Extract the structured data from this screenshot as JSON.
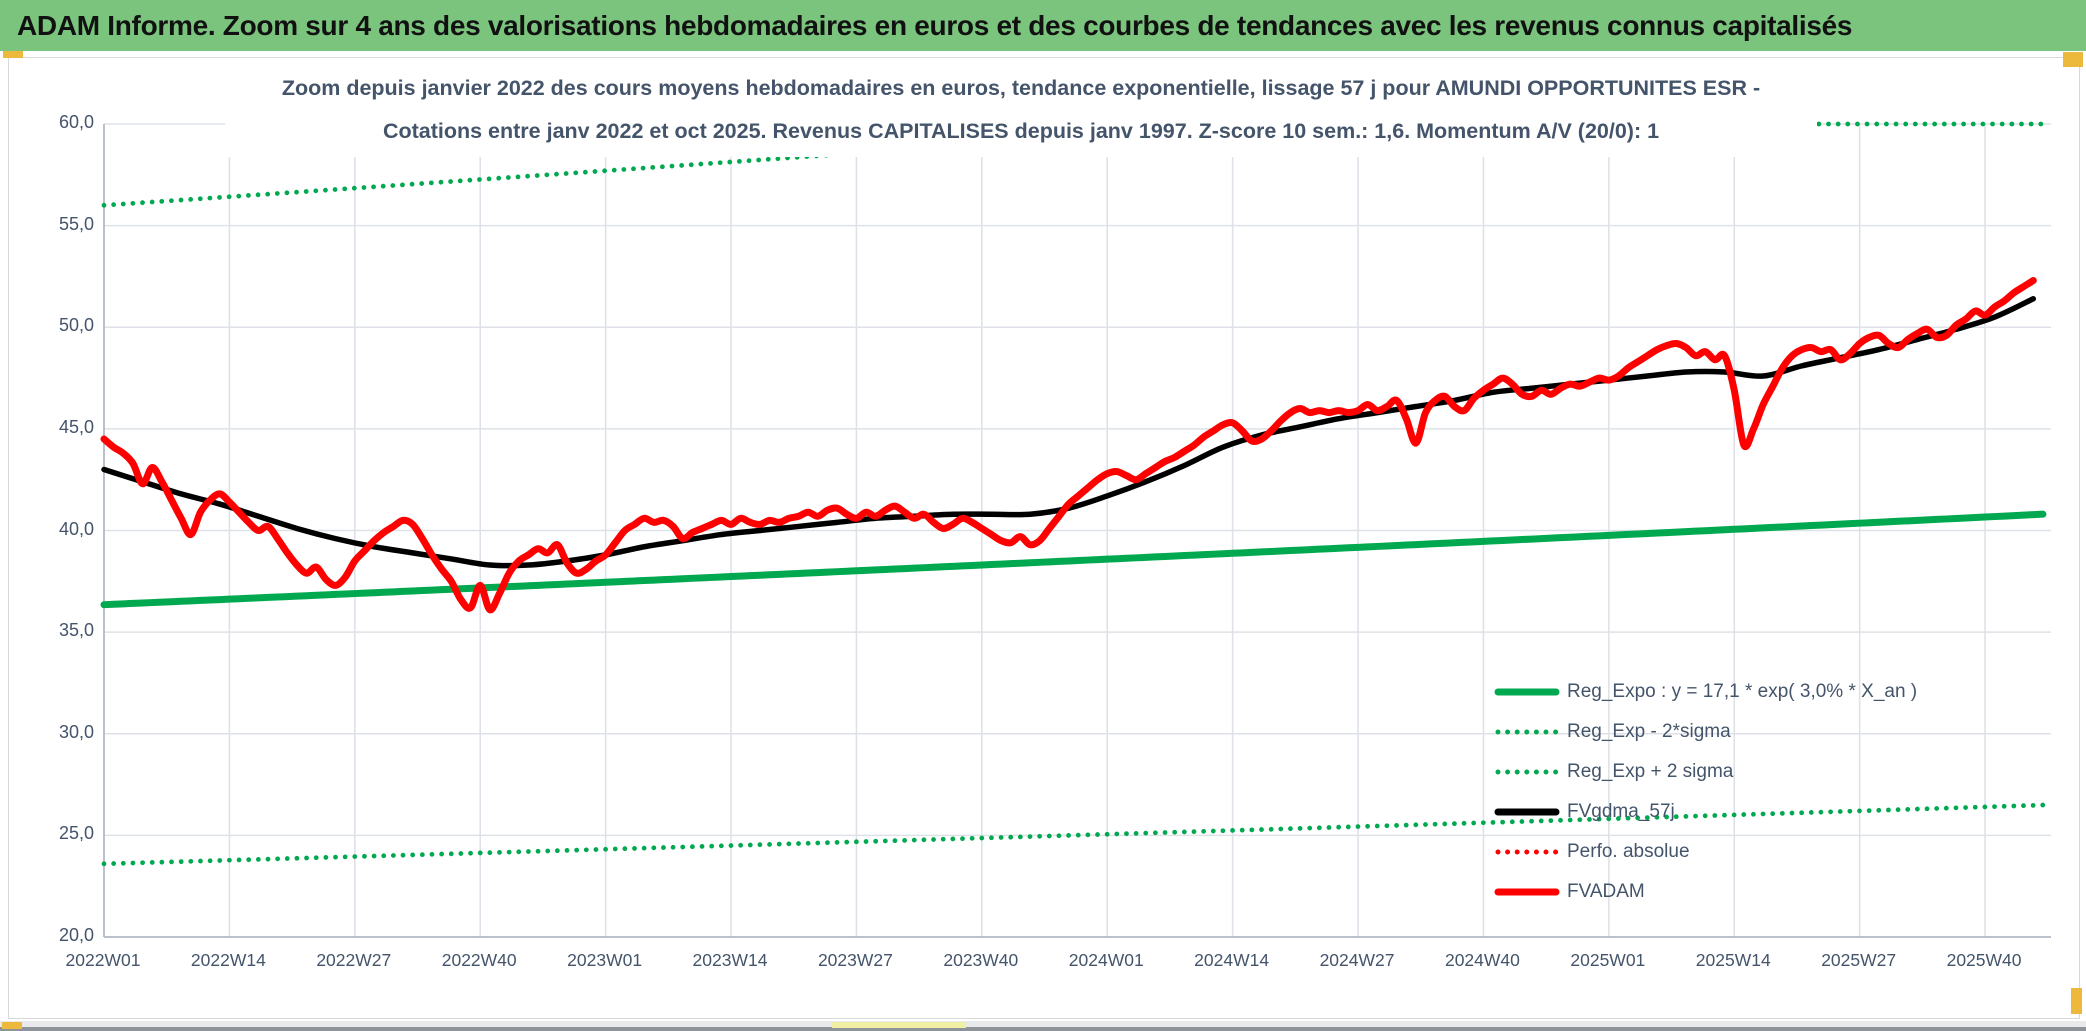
{
  "header": {
    "title": "ADAM Informe. Zoom sur 4 ans des valorisations hebdomadaires en euros et des courbes de tendances avec les revenus connus capitalisés"
  },
  "colors": {
    "header_bg": "#7ac47d",
    "text_dark": "#44546a",
    "grid": "#dee2e8",
    "axis_line": "#b3bac4",
    "green": "#00a94f",
    "red": "#ff0000",
    "black": "#000000",
    "gold_accent": "#edb93c",
    "pale_yellow_accent": "#eff0a4",
    "bottom_strip_light": "#e9eaec",
    "bottom_strip_dark": "#8e9299"
  },
  "chart_data": {
    "type": "line",
    "title_line1": "Zoom depuis janvier 2022 des cours moyens hebdomadaires en euros, tendance exponentielle, lissage 57 j pour AMUNDI OPPORTUNITES ESR -",
    "title_line2": "Cotations entre janv 2022 et oct 2025. Revenus CAPITALISES depuis janv 1997. Z-score 10 sem.: 1,6. Momentum A/V (20/0): 1",
    "x_axis": {
      "tick_labels": [
        "2022W01",
        "2022W14",
        "2022W27",
        "2022W40",
        "2023W01",
        "2023W14",
        "2023W27",
        "2023W40",
        "2024W01",
        "2024W14",
        "2024W27",
        "2024W40",
        "2025W01",
        "2025W14",
        "2025W27",
        "2025W40"
      ],
      "tick_interval_weeks": 13,
      "data_resolution": "weekly",
      "last_data_week_index": 200
    },
    "y_axis": {
      "min": 20,
      "max": 60,
      "step": 5,
      "tick_labels": [
        "60,0",
        "55,0",
        "50,0",
        "45,0",
        "40,0",
        "35,0",
        "30,0",
        "25,0",
        "20,0"
      ],
      "grid": true
    },
    "legend_position": "inside-lower-right",
    "series": [
      {
        "name": "Reg_Expo : y = 17,1 * exp( 3,0% *  X_an )",
        "key": "reg_expo",
        "color": "#00a94f",
        "style": "solid",
        "stroke_width": 7,
        "model": {
          "type": "exponential",
          "value_at_2022W01": 36.35,
          "annual_growth_pct": 3.0
        }
      },
      {
        "name": "Reg_Exp - 2*sigma",
        "key": "reg_exp_minus_2sigma",
        "color": "#00a94f",
        "style": "dotted",
        "stroke_width": 4.8,
        "model": {
          "type": "exponential",
          "value_at_2022W01": 23.6,
          "annual_growth_pct": 3.0
        }
      },
      {
        "name": "Reg_Exp + 2 sigma",
        "key": "reg_exp_plus_2sigma",
        "color": "#00a94f",
        "style": "dotted",
        "stroke_width": 4.8,
        "model": {
          "type": "exponential",
          "value_at_2022W01": 56.0,
          "annual_growth_pct": 3.0
        },
        "clamped_at_y_max": true
      },
      {
        "name": "FVgdma_57j",
        "key": "fvgdma_57j",
        "color": "#000000",
        "style": "solid",
        "stroke_width": 5.5,
        "week_step": 4,
        "values": [
          43.0,
          42.4,
          41.8,
          41.3,
          40.7,
          40.1,
          39.6,
          39.2,
          38.9,
          38.6,
          38.3,
          38.3,
          38.5,
          38.8,
          39.2,
          39.5,
          39.8,
          40.0,
          40.2,
          40.4,
          40.6,
          40.7,
          40.8,
          40.8,
          40.8,
          41.1,
          41.7,
          42.4,
          43.2,
          44.1,
          44.7,
          45.1,
          45.5,
          45.8,
          46.1,
          46.4,
          46.8,
          47.0,
          47.2,
          47.4,
          47.6,
          47.8,
          47.8,
          47.6,
          48.1,
          48.5,
          48.9,
          49.4,
          49.9,
          50.5,
          51.4
        ]
      },
      {
        "name": "Perfo. absolue",
        "key": "perfo_absolue",
        "color": "#ff0000",
        "style": "dotted",
        "stroke_width": 4.8,
        "visible_in_plot": false
      },
      {
        "name": "FVADAM",
        "key": "fvadam",
        "color": "#ff0000",
        "style": "solid",
        "stroke_width": 7,
        "week_step": 1,
        "values": [
          44.5,
          44.1,
          43.8,
          43.3,
          42.3,
          43.1,
          42.4,
          41.5,
          40.6,
          39.8,
          40.9,
          41.5,
          41.8,
          41.4,
          40.9,
          40.4,
          40.0,
          40.2,
          39.6,
          38.9,
          38.3,
          37.9,
          38.2,
          37.6,
          37.3,
          37.7,
          38.5,
          39.0,
          39.5,
          39.9,
          40.2,
          40.5,
          40.3,
          39.6,
          38.8,
          38.1,
          37.5,
          36.6,
          36.2,
          37.3,
          36.1,
          36.9,
          37.9,
          38.5,
          38.8,
          39.1,
          38.9,
          39.3,
          38.4,
          37.9,
          38.1,
          38.5,
          38.8,
          39.4,
          40.0,
          40.3,
          40.6,
          40.4,
          40.5,
          40.2,
          39.6,
          39.9,
          40.1,
          40.3,
          40.5,
          40.3,
          40.6,
          40.4,
          40.3,
          40.5,
          40.4,
          40.6,
          40.7,
          40.9,
          40.7,
          41.0,
          41.1,
          40.8,
          40.6,
          40.9,
          40.7,
          41.0,
          41.2,
          40.9,
          40.6,
          40.8,
          40.4,
          40.1,
          40.3,
          40.6,
          40.4,
          40.1,
          39.8,
          39.5,
          39.4,
          39.7,
          39.3,
          39.5,
          40.1,
          40.7,
          41.3,
          41.7,
          42.1,
          42.5,
          42.8,
          42.9,
          42.7,
          42.5,
          42.8,
          43.1,
          43.4,
          43.6,
          43.9,
          44.2,
          44.6,
          44.9,
          45.2,
          45.3,
          44.9,
          44.4,
          44.5,
          44.9,
          45.4,
          45.8,
          46.0,
          45.8,
          45.9,
          45.8,
          45.9,
          45.8,
          45.9,
          46.2,
          45.9,
          46.1,
          46.4,
          45.5,
          44.3,
          45.8,
          46.4,
          46.6,
          46.1,
          45.9,
          46.5,
          46.9,
          47.2,
          47.5,
          47.2,
          46.7,
          46.6,
          46.9,
          46.7,
          47.0,
          47.2,
          47.1,
          47.3,
          47.5,
          47.4,
          47.6,
          48.0,
          48.3,
          48.6,
          48.9,
          49.1,
          49.2,
          49.0,
          48.6,
          48.8,
          48.4,
          48.6,
          46.9,
          44.2,
          45.0,
          46.2,
          47.1,
          48.0,
          48.6,
          48.9,
          49.0,
          48.8,
          48.9,
          48.4,
          48.7,
          49.2,
          49.5,
          49.6,
          49.2,
          49.0,
          49.4,
          49.7,
          49.9,
          49.5,
          49.6,
          50.1,
          50.4,
          50.8,
          50.6,
          51.0,
          51.3,
          51.7,
          52.0,
          52.3
        ]
      }
    ]
  }
}
